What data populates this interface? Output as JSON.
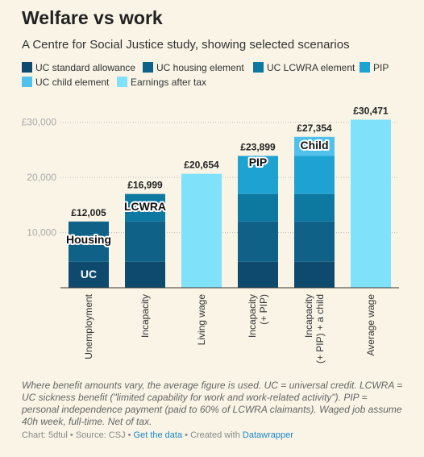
{
  "chart_data": {
    "type": "bar",
    "stacked": true,
    "title": "Welfare vs work",
    "subtitle": "A Centre for Social Justice study, showing selected scenarios",
    "categories": [
      "Unemployment",
      "Incapacity",
      "Living wage",
      "Incapacity (+ PIP)",
      "Incapacity (+ PIP) + a child",
      "Average wage"
    ],
    "series": [
      {
        "name": "UC standard allowance",
        "color": "#0e4a6e",
        "values": [
          4700,
          4700,
          null,
          4700,
          4700,
          null
        ]
      },
      {
        "name": "UC housing element",
        "color": "#0f6187",
        "values": [
          7305,
          7300,
          null,
          7300,
          7300,
          null
        ]
      },
      {
        "name": "UC LCWRA element",
        "color": "#0d78a0",
        "values": [
          null,
          4999,
          null,
          5000,
          5000,
          null
        ]
      },
      {
        "name": "PIP",
        "color": "#1da2d2",
        "values": [
          null,
          null,
          null,
          6899,
          6899,
          null
        ]
      },
      {
        "name": "UC child element",
        "color": "#4fc1ec",
        "values": [
          null,
          null,
          null,
          null,
          3455,
          null
        ]
      },
      {
        "name": "Earnings after tax",
        "color": "#80e1fb",
        "values": [
          null,
          null,
          20654,
          null,
          null,
          30471
        ]
      }
    ],
    "totals": [
      12005,
      16999,
      20654,
      23899,
      27354,
      30471
    ],
    "total_labels": [
      "£12,005",
      "£16,999",
      "£20,654",
      "£23,899",
      "£27,354",
      "£30,471"
    ],
    "annotations": [
      "UC",
      "Housing",
      "LCWRA",
      "PIP",
      "Child"
    ],
    "ylim": [
      0,
      32000
    ],
    "yticks": [
      {
        "value": 10000,
        "label": "10,000"
      },
      {
        "value": 20000,
        "label": "20,000"
      },
      {
        "value": 30000,
        "label": "£30,000"
      }
    ],
    "grid": true,
    "note": "Where benefit amounts vary, the average figure is used. UC = universal credit. LCWRA = UC sickness benefit (\"limited capability for work and work-related activity\"). PIP = personal independence payment (paid to 60% of LCWRA claimants). Waged job assume 40h week, full-time. Net of tax.",
    "credit": "Chart: 5dtul • Source: CSJ •",
    "data_link": "Get the data",
    "created": "• Created with",
    "tool": "Datawrapper"
  }
}
